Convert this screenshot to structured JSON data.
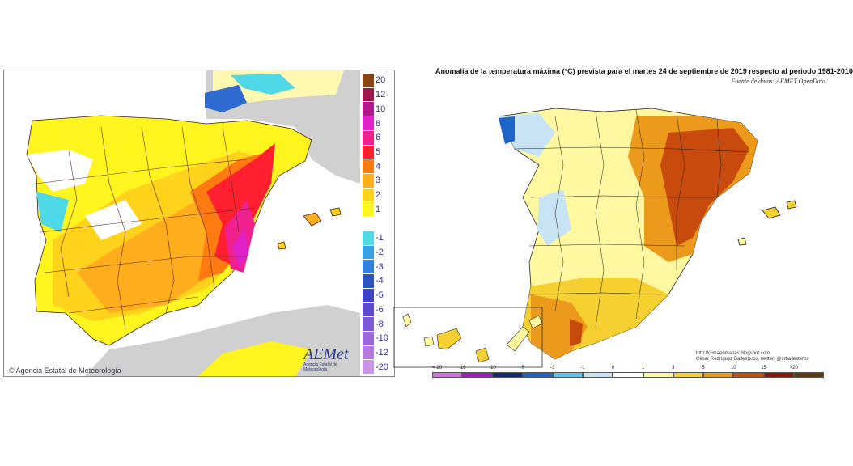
{
  "left_map": {
    "copyright": "© Agencia Estatal de Meteorología",
    "logo": "AEMet",
    "logo_subtitle": "Agencia Estatal de Meteorología",
    "legend": [
      {
        "label": "20",
        "color": "#8b4513"
      },
      {
        "label": "12",
        "color": "#a0154e"
      },
      {
        "label": "10",
        "color": "#b5178f"
      },
      {
        "label": "8",
        "color": "#e020c8"
      },
      {
        "label": "6",
        "color": "#f0208c"
      },
      {
        "label": "5",
        "color": "#ff1f2e"
      },
      {
        "label": "4",
        "color": "#ff7a10"
      },
      {
        "label": "3",
        "color": "#ffad1c"
      },
      {
        "label": "2",
        "color": "#ffd21c"
      },
      {
        "label": "1",
        "color": "#fff51e"
      },
      {
        "label": "",
        "color": "#ffffff"
      },
      {
        "label": "-1",
        "color": "#4ed8e8"
      },
      {
        "label": "-2",
        "color": "#36a0e8"
      },
      {
        "label": "-3",
        "color": "#2f7fdc"
      },
      {
        "label": "-4",
        "color": "#2a55c0"
      },
      {
        "label": "-5",
        "color": "#4040c8"
      },
      {
        "label": "-6",
        "color": "#5e4ad0"
      },
      {
        "label": "-8",
        "color": "#7a58d8"
      },
      {
        "label": "-10",
        "color": "#9a68dc"
      },
      {
        "label": "-12",
        "color": "#b57ae0"
      },
      {
        "label": "-20",
        "color": "#c894e8"
      }
    ]
  },
  "right_map": {
    "title": "Anomalía de la temperatura máxima (°C) prevista para el martes 24 de septiembre de 2019 respecto al periodo 1981-2010",
    "source": "Fuente de datos: AEMET OpenData",
    "credit_line1": "http://climaenmapas.blogspot.com",
    "credit_line2": "César Rodríguez Ballesteros, twitter: @crballesteros",
    "scale": [
      {
        "label": "<-20",
        "color": "#d86ee8"
      },
      {
        "label": "-15",
        "color": "#a418d0"
      },
      {
        "label": "-10",
        "color": "#142a6e"
      },
      {
        "label": "-5",
        "color": "#1c64c8"
      },
      {
        "label": "-3",
        "color": "#5ac8ec"
      },
      {
        "label": "-1",
        "color": "#c8e4f4"
      },
      {
        "label": "0",
        "color": "#ffffff"
      },
      {
        "label": "1",
        "color": "#fff8a0"
      },
      {
        "label": "3",
        "color": "#f6d030"
      },
      {
        "label": "5",
        "color": "#ec9a1c"
      },
      {
        "label": "10",
        "color": "#c84a0c"
      },
      {
        "label": "15",
        "color": "#8c1408"
      },
      {
        "label": ">20",
        "color": "#5c3a12"
      }
    ]
  }
}
